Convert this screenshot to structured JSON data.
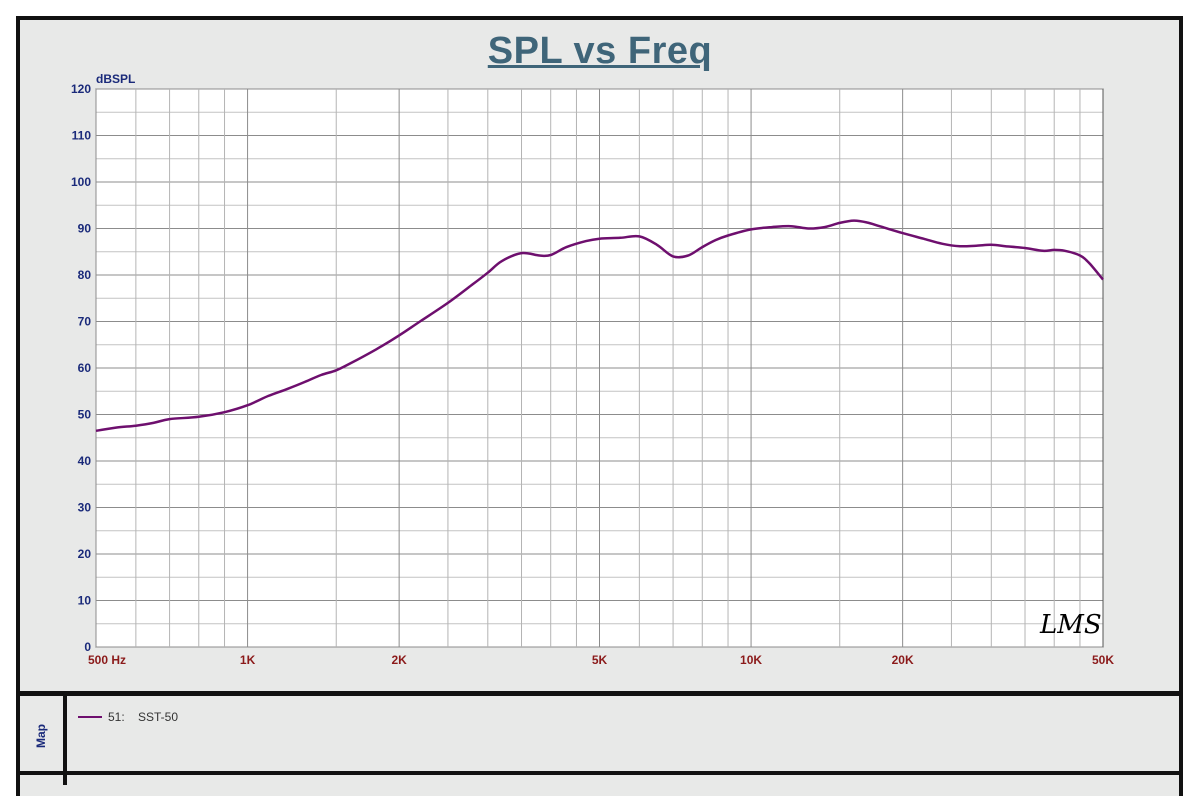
{
  "chart_data": {
    "type": "line",
    "title": "SPL vs Freq",
    "ylabel": "dBSPL",
    "xlabel": "",
    "x_scale": "log",
    "xlim": [
      500,
      50000
    ],
    "ylim": [
      0,
      120
    ],
    "grid": true,
    "yticks": [
      0,
      10,
      20,
      30,
      40,
      50,
      60,
      70,
      80,
      90,
      100,
      110,
      120
    ],
    "xtick_labels": [
      {
        "value": 500,
        "label": "500  Hz"
      },
      {
        "value": 1000,
        "label": "1K"
      },
      {
        "value": 2000,
        "label": "2K"
      },
      {
        "value": 5000,
        "label": "5K"
      },
      {
        "value": 10000,
        "label": "10K"
      },
      {
        "value": 20000,
        "label": "20K"
      },
      {
        "value": 50000,
        "label": "50K"
      }
    ],
    "series": [
      {
        "name": "SST-50",
        "color": "#6e0f6e",
        "points": [
          [
            500,
            46.5
          ],
          [
            550,
            47.2
          ],
          [
            600,
            47.6
          ],
          [
            650,
            48.2
          ],
          [
            700,
            49.0
          ],
          [
            800,
            49.5
          ],
          [
            900,
            50.5
          ],
          [
            1000,
            52.0
          ],
          [
            1100,
            54.0
          ],
          [
            1200,
            55.5
          ],
          [
            1300,
            57.0
          ],
          [
            1400,
            58.5
          ],
          [
            1500,
            59.5
          ],
          [
            1600,
            61.0
          ],
          [
            1800,
            64.0
          ],
          [
            2000,
            67.0
          ],
          [
            2200,
            70.0
          ],
          [
            2500,
            74.0
          ],
          [
            2800,
            78.0
          ],
          [
            3000,
            80.5
          ],
          [
            3200,
            83.0
          ],
          [
            3500,
            84.7
          ],
          [
            3800,
            84.2
          ],
          [
            4000,
            84.3
          ],
          [
            4300,
            86.0
          ],
          [
            4700,
            87.3
          ],
          [
            5000,
            87.8
          ],
          [
            5500,
            88.0
          ],
          [
            6000,
            88.3
          ],
          [
            6500,
            86.5
          ],
          [
            7000,
            84.0
          ],
          [
            7500,
            84.2
          ],
          [
            8000,
            86.0
          ],
          [
            8500,
            87.5
          ],
          [
            9000,
            88.5
          ],
          [
            10000,
            89.8
          ],
          [
            11000,
            90.3
          ],
          [
            12000,
            90.5
          ],
          [
            13000,
            90.0
          ],
          [
            14000,
            90.3
          ],
          [
            15000,
            91.2
          ],
          [
            16000,
            91.7
          ],
          [
            17000,
            91.3
          ],
          [
            18000,
            90.5
          ],
          [
            20000,
            89.0
          ],
          [
            22000,
            87.8
          ],
          [
            24000,
            86.7
          ],
          [
            26000,
            86.2
          ],
          [
            28000,
            86.3
          ],
          [
            30000,
            86.5
          ],
          [
            32000,
            86.2
          ],
          [
            35000,
            85.8
          ],
          [
            38000,
            85.2
          ],
          [
            40000,
            85.4
          ],
          [
            42000,
            85.2
          ],
          [
            45000,
            84.2
          ],
          [
            47000,
            82.5
          ],
          [
            50000,
            79.0
          ]
        ]
      }
    ]
  },
  "legend": {
    "panel_label": "Map",
    "entries": [
      {
        "id": "51:",
        "name": "SST-50",
        "color": "#6e0f6e"
      }
    ]
  },
  "signature_text": "LMS"
}
